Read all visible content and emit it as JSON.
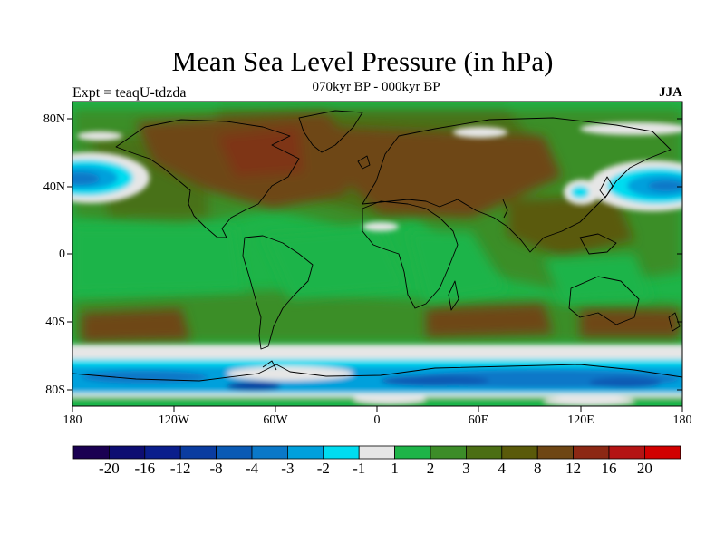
{
  "title": "Mean Sea Level Pressure (in hPa)",
  "subtitle": "070kyr BP - 000kyr BP",
  "experiment_label": "Expt = teaqU-tdzda",
  "season_label": "JJA",
  "lat_ticks": [
    "80N",
    "40N",
    "0",
    "40S",
    "80S"
  ],
  "lon_ticks": [
    "180",
    "120W",
    "60W",
    "0",
    "60E",
    "120E",
    "180"
  ],
  "colorbar": {
    "labels": [
      "-20",
      "-16",
      "-12",
      "-8",
      "-4",
      "-3",
      "-2",
      "-1",
      "1",
      "2",
      "3",
      "4",
      "8",
      "12",
      "16",
      "20"
    ],
    "colors": [
      "#1a0052",
      "#0d0d72",
      "#0a1e8c",
      "#0a3ca0",
      "#0a5ab4",
      "#0a78c8",
      "#00a0dc",
      "#00dcf0",
      "#e6e6e6",
      "#1eb448",
      "#3c8c28",
      "#4b6e14",
      "#5a5a0a",
      "#6e4614",
      "#8c2814",
      "#b41414",
      "#d20000"
    ]
  }
}
